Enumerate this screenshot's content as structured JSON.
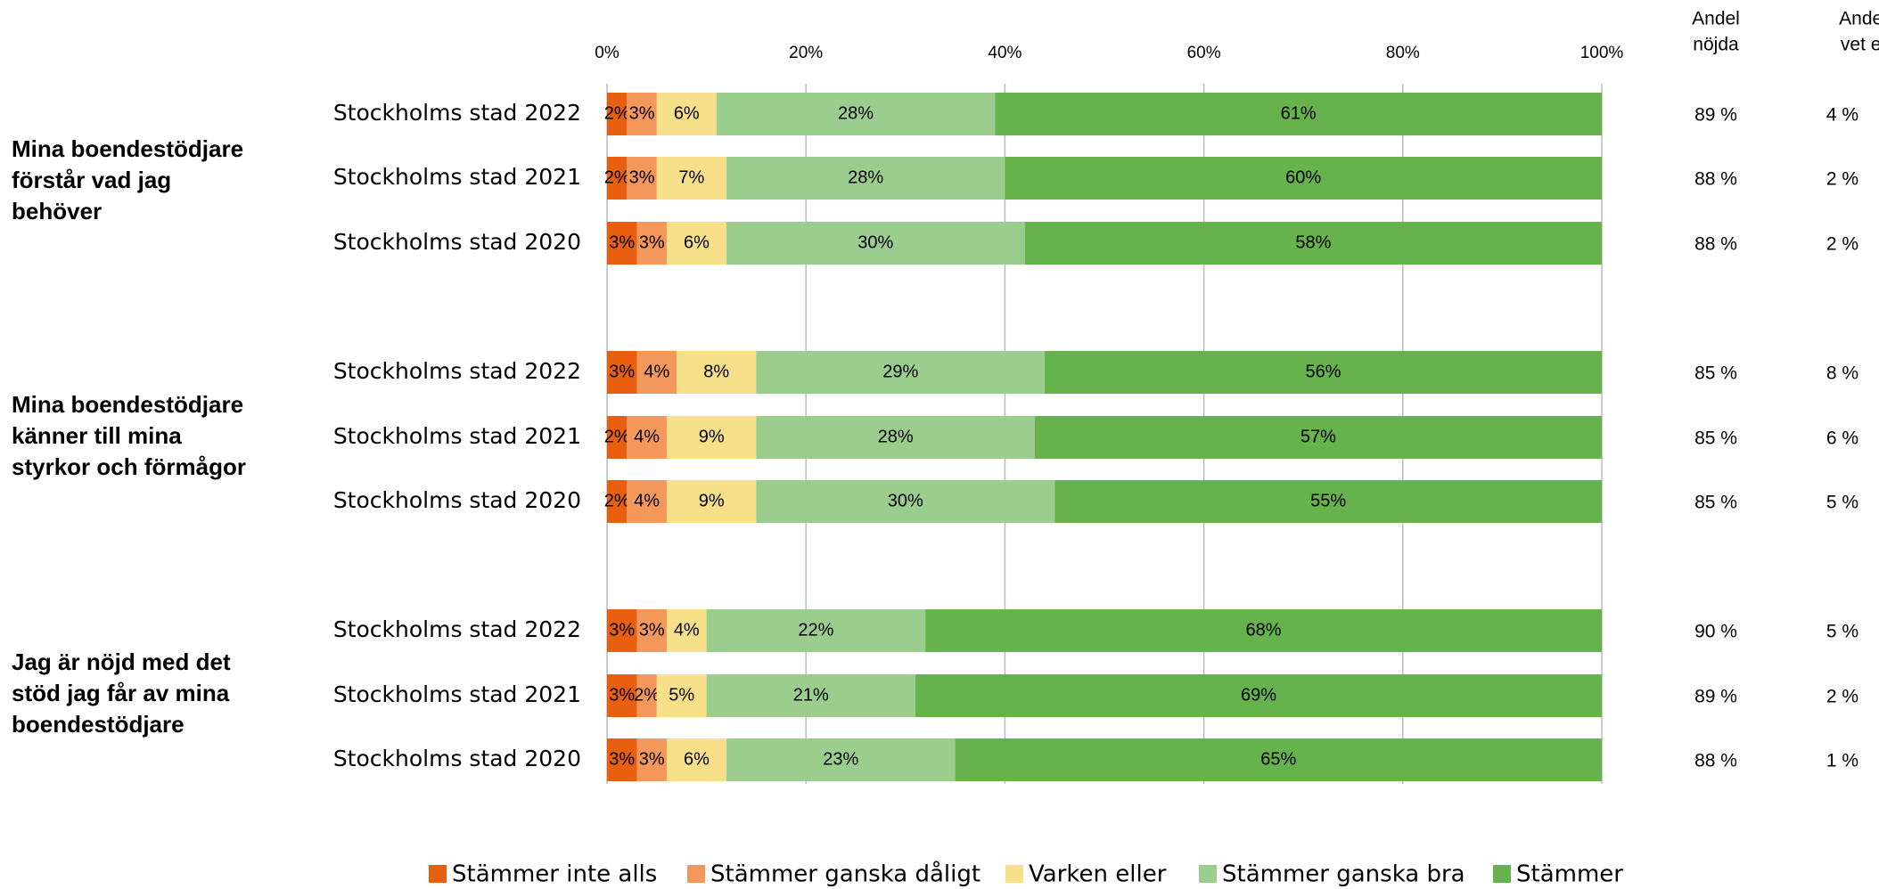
{
  "chart_data": {
    "type": "stacked_barh",
    "categories": [
      "Stockholms stad 2022",
      "Stockholms stad 2021",
      "Stockholms stad 2020",
      "Stockholms stad 2022",
      "Stockholms stad 2021",
      "Stockholms stad 2020",
      "Stockholms stad 2022",
      "Stockholms stad 2021",
      "Stockholms stad 2020"
    ],
    "groups": [
      {
        "label": [
          "Mina boendestödjare",
          "förstår vad jag",
          "behöver"
        ]
      },
      {
        "label": [
          "Mina boendestödjare",
          "känner till mina",
          "styrkor och förmågor"
        ]
      },
      {
        "label": [
          "Jag är nöjd med det",
          "stöd jag får av mina",
          "boendestödjare"
        ]
      }
    ],
    "series": [
      {
        "name": "Stämmer inte alls",
        "color": "#E8600F",
        "values": [
          2,
          2,
          3,
          3,
          2,
          2,
          3,
          3,
          3
        ],
        "value_labels": [
          "2%",
          "2%",
          "3%",
          "3%",
          "2%",
          "2%",
          "3%",
          "3%",
          "3%"
        ]
      },
      {
        "name": "Stämmer ganska dåligt",
        "color": "#F4975A",
        "values": [
          3,
          3,
          3,
          4,
          4,
          4,
          3,
          2,
          3
        ],
        "value_labels": [
          "3%",
          "3%",
          "3%",
          "4%",
          "4%",
          "4%",
          "3%",
          "2%",
          "3%"
        ]
      },
      {
        "name": "Varken eller",
        "color": "#F8E08A",
        "values": [
          6,
          7,
          6,
          8,
          9,
          9,
          4,
          5,
          6
        ],
        "value_labels": [
          "6%",
          "7%",
          "6%",
          "8%",
          "9%",
          "9%",
          "4%",
          "5%",
          "6%"
        ]
      },
      {
        "name": "Stämmer ganska bra",
        "color": "#9ACD8E",
        "values": [
          28,
          28,
          30,
          29,
          28,
          30,
          22,
          21,
          23
        ],
        "value_labels": [
          "28%",
          "28%",
          "30%",
          "29%",
          "28%",
          "30%",
          "22%",
          "21%",
          "23%"
        ]
      },
      {
        "name": "Stämmer",
        "color": "#66B34D",
        "values": [
          61,
          60,
          58,
          56,
          57,
          55,
          68,
          69,
          65
        ],
        "value_labels": [
          "61%",
          "60%",
          "58%",
          "56%",
          "57%",
          "55%",
          "68%",
          "69%",
          "65%"
        ]
      }
    ],
    "xlim": [
      0,
      100
    ],
    "xticks": [
      {
        "value": 0,
        "label": "0%"
      },
      {
        "value": 20,
        "label": "20%"
      },
      {
        "value": 40,
        "label": "40%"
      },
      {
        "value": 60,
        "label": "60%"
      },
      {
        "value": 80,
        "label": "80%"
      },
      {
        "value": 100,
        "label": "100%"
      }
    ],
    "grid": true,
    "legend": "bottom",
    "columns": [
      {
        "header": [
          "Andel",
          "nöjda"
        ],
        "values": [
          89,
          88,
          88,
          85,
          85,
          85,
          90,
          89,
          88
        ],
        "value_labels": [
          "89 %",
          "88 %",
          "88 %",
          "85 %",
          "85 %",
          "85 %",
          "90 %",
          "89 %",
          "88 %"
        ]
      },
      {
        "header": [
          "Andel",
          "vet ej"
        ],
        "values": [
          4,
          2,
          2,
          8,
          6,
          5,
          5,
          2,
          1
        ],
        "value_labels": [
          "4 %",
          "2 %",
          "2 %",
          "8 %",
          "6 %",
          "5 %",
          "5 %",
          "2 %",
          "1 %"
        ]
      }
    ]
  }
}
